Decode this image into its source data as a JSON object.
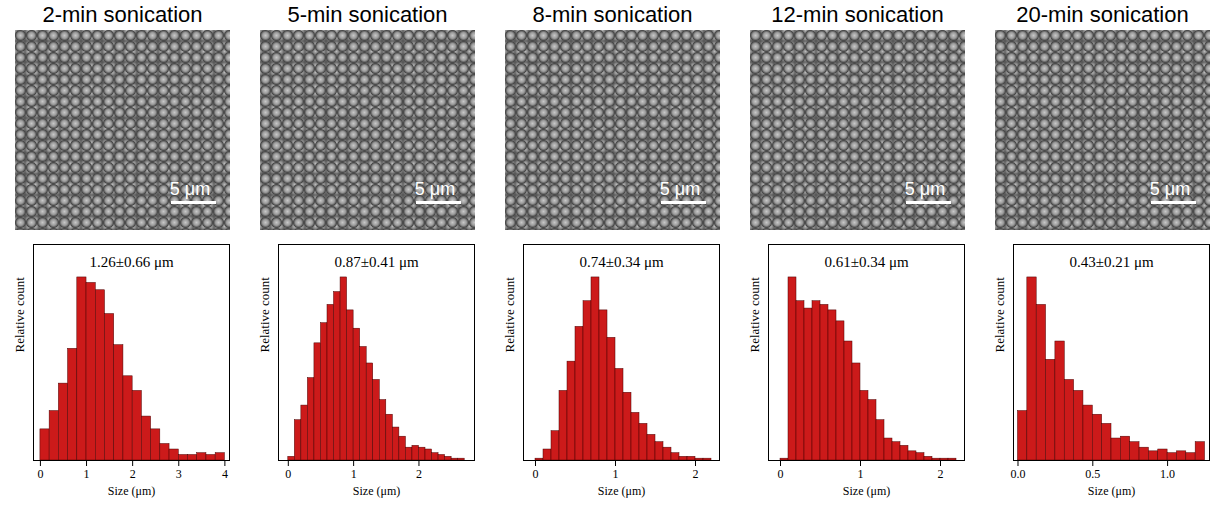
{
  "chart_data": [
    {
      "type": "histogram",
      "title": "2-min sonication",
      "annotations": [
        "1.26±0.66 μm"
      ],
      "scale_bar_label": "5 μm",
      "x_label": "Size (μm)",
      "y_label": "Relative count",
      "color": "#cc1a1a",
      "tick_labels": "x",
      "bins": [
        0,
        0.2,
        0.4,
        0.6,
        0.8,
        1.0,
        1.2,
        1.4,
        1.6,
        1.8,
        2.0,
        2.2,
        2.4,
        2.6,
        2.8,
        3.0,
        3.2,
        3.4,
        3.6,
        3.8,
        4.0
      ],
      "values": [
        17,
        27,
        42,
        61,
        100,
        97,
        93,
        80,
        63,
        46,
        38,
        24,
        17,
        9,
        6,
        3,
        3,
        4,
        3,
        4
      ],
      "xlim": [
        -0.15,
        4.1
      ],
      "xticks": [
        0,
        1,
        2,
        3,
        4
      ],
      "ylim": [
        0,
        118
      ],
      "yticks": []
    },
    {
      "type": "histogram",
      "title": "5-min sonication",
      "annotations": [
        "0.87±0.41 μm"
      ],
      "scale_bar_label": "5 μm",
      "x_label": "Size (μm)",
      "y_label": "Relative count",
      "color": "#cc1a1a",
      "tick_labels": "x",
      "bins": [
        0,
        0.1,
        0.2,
        0.3,
        0.4,
        0.5,
        0.6,
        0.7,
        0.8,
        0.9,
        1.0,
        1.1,
        1.2,
        1.3,
        1.4,
        1.5,
        1.6,
        1.7,
        1.8,
        1.9,
        2.0,
        2.1,
        2.2,
        2.3,
        2.4,
        2.5,
        2.6,
        2.7
      ],
      "values": [
        2,
        22,
        30,
        45,
        64,
        75,
        85,
        92,
        100,
        82,
        72,
        62,
        53,
        44,
        33,
        25,
        18,
        13,
        7,
        8,
        7,
        6,
        4,
        3,
        2,
        1,
        1
      ],
      "xlim": [
        -0.15,
        2.85
      ],
      "xticks": [
        0,
        1,
        2
      ],
      "ylim": [
        0,
        118
      ],
      "yticks": []
    },
    {
      "type": "histogram",
      "title": "8-min sonication",
      "annotations": [
        "0.74±0.34 μm"
      ],
      "scale_bar_label": "5 μm",
      "x_label": "Size (μm)",
      "y_label": "Relative count",
      "color": "#cc1a1a",
      "tick_labels": "x",
      "bins": [
        0,
        0.1,
        0.2,
        0.3,
        0.4,
        0.5,
        0.6,
        0.7,
        0.8,
        0.9,
        1.0,
        1.1,
        1.2,
        1.3,
        1.4,
        1.5,
        1.6,
        1.7,
        1.8,
        1.9,
        2.0,
        2.1,
        2.2
      ],
      "values": [
        1,
        6,
        16,
        38,
        54,
        73,
        87,
        100,
        82,
        67,
        50,
        37,
        26,
        20,
        14,
        10,
        7,
        4,
        2,
        2,
        1,
        1
      ],
      "xlim": [
        -0.15,
        2.3
      ],
      "xticks": [
        0,
        1,
        2
      ],
      "ylim": [
        0,
        118
      ],
      "yticks": []
    },
    {
      "type": "histogram",
      "title": "12-min sonication",
      "annotations": [
        "0.61±0.34 μm"
      ],
      "scale_bar_label": "5 μm",
      "x_label": "Size (μm)",
      "y_label": "Relative count",
      "color": "#cc1a1a",
      "tick_labels": "x",
      "bins": [
        0,
        0.1,
        0.2,
        0.3,
        0.4,
        0.5,
        0.6,
        0.7,
        0.8,
        0.9,
        1.0,
        1.1,
        1.2,
        1.3,
        1.4,
        1.5,
        1.6,
        1.7,
        1.8,
        1.9,
        2.0,
        2.1,
        2.2
      ],
      "values": [
        1,
        100,
        87,
        83,
        87,
        85,
        82,
        76,
        65,
        53,
        38,
        33,
        22,
        12,
        10,
        8,
        5,
        4,
        2,
        1,
        1,
        1
      ],
      "xlim": [
        -0.15,
        2.3
      ],
      "xticks": [
        0,
        1,
        2
      ],
      "ylim": [
        0,
        118
      ],
      "yticks": []
    },
    {
      "type": "histogram",
      "title": "20-min sonication",
      "annotations": [
        "0.43±0.21 μm"
      ],
      "scale_bar_label": "5 μm",
      "x_label": "Size (μm)",
      "y_label": "Relative count",
      "color": "#cc1a1a",
      "tick_labels": "x",
      "bins": [
        0,
        0.0625,
        0.125,
        0.1875,
        0.25,
        0.3125,
        0.375,
        0.4375,
        0.5,
        0.5625,
        0.625,
        0.6875,
        0.75,
        0.8125,
        0.875,
        0.9375,
        1.0,
        1.0625,
        1.125,
        1.1875,
        1.25
      ],
      "values": [
        27,
        100,
        85,
        55,
        65,
        44,
        38,
        30,
        25,
        20,
        12,
        13,
        10,
        7,
        5,
        6,
        4,
        5,
        4,
        10
      ],
      "xlim": [
        -0.03,
        1.28
      ],
      "xticks": [
        {
          "value": 0,
          "label": "0.0"
        },
        0.5,
        {
          "value": 1,
          "label": "1.0"
        }
      ],
      "ylim": [
        0,
        118
      ],
      "yticks": []
    }
  ]
}
